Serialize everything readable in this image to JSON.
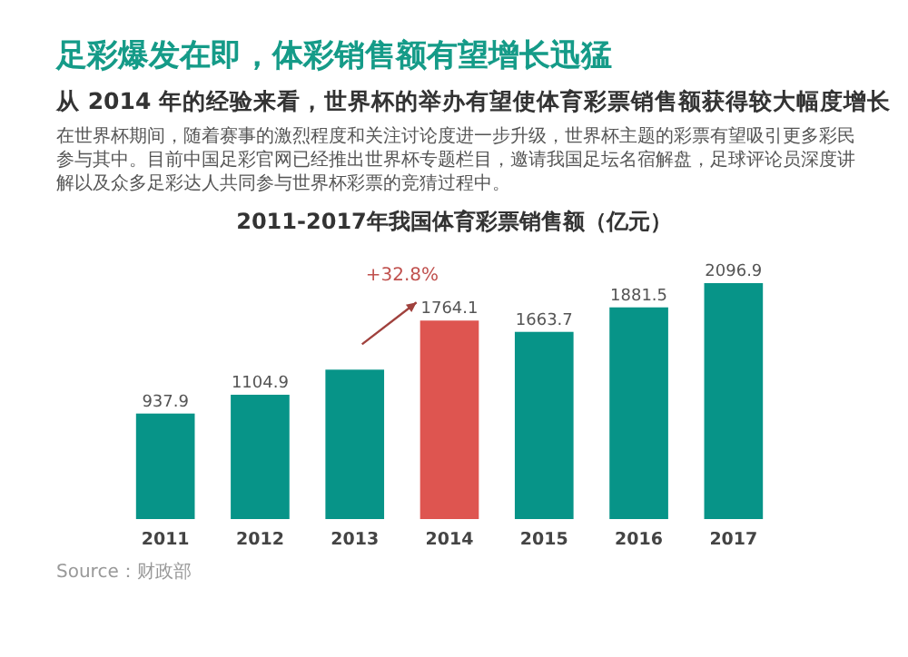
{
  "chart_data": {
    "type": "bar",
    "title": "足彩爆发在即，体彩销售额有望增长迅猛",
    "subtitle": "从 2014 年的经验来看，世界杯的举办有望使体育彩票销售额获得较大幅度增长",
    "categories": [
      "2011",
      "2012",
      "2013",
      "2014",
      "2015",
      "2016",
      "2017"
    ],
    "values": [
      937.9,
      1104.9,
      1328,
      1764.1,
      1663.7,
      1881.5,
      2096.9
    ],
    "colors": [
      "#079488",
      "#079488",
      "#079488",
      "#de5550",
      "#079488",
      "#079488",
      "#079488"
    ],
    "value_labels": [
      "937.9",
      "1104.9",
      null,
      "1764.1",
      "1663.7",
      "1881.5",
      "2096.9"
    ],
    "annotations": [
      "在世界杯期间，随着赛事的激烈程度和关注讨论度进一步升级，世界杯主题的彩票有望吸引更多彩民参与其中。目前中国足彩官网已经推出世界杯专题栏目，邀请我国足坛名宿解盘，足球评论员深度讲解以及众多足彩达人共同参与世界杯彩票的竞猜过程中。",
      "2011-2017年我国体育彩票销售额（亿元）",
      {
        "text": "+32.8%",
        "x": "2014",
        "y": 1764.1
      },
      "Source：财政部"
    ]
  }
}
